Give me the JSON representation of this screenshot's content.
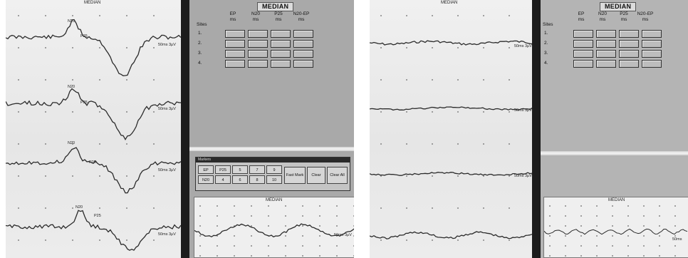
{
  "left_photo": {
    "trace_panel": {
      "top_label": "MEDIAN",
      "traces": [
        {
          "peak_n20": "N20",
          "peak_p25": "P25",
          "sweep": "50ms 3μV"
        },
        {
          "peak_n20": "N20",
          "peak_p25": "P25",
          "sweep": "50ms 3μV"
        },
        {
          "peak_n20": "N20",
          "peak_p25": "P25",
          "sweep": "50ms 3μV"
        },
        {
          "peak_n20": "N20",
          "peak_p25": "P25",
          "sweep": "50ms 3μV"
        }
      ]
    },
    "data_panel": {
      "title": "MEDIAN",
      "columns": [
        {
          "name": "EP",
          "unit": "ms"
        },
        {
          "name": "N20",
          "unit": "ms"
        },
        {
          "name": "P25",
          "unit": "ms"
        },
        {
          "name": "N20-EP",
          "unit": "ms"
        }
      ],
      "row_header": "Sites",
      "rows": [
        "1.",
        "2.",
        "3.",
        "4."
      ],
      "markers": {
        "title": "Markers",
        "buttons_row1": [
          "EP",
          "P25",
          "5",
          "7",
          "9"
        ],
        "buttons_row2": [
          "N20",
          "4",
          "6",
          "8",
          "10"
        ],
        "actions": [
          "Fast Mark",
          "Clear",
          "Clear All"
        ]
      },
      "lower_trace": {
        "top_label": "MEDIAN",
        "sweep": "50ms 3μV"
      }
    }
  },
  "right_photo": {
    "trace_panel": {
      "top_label": "MEDIAN",
      "traces": [
        {
          "sweep": "50ms 3μV"
        },
        {
          "sweep": "50ms 3μV"
        },
        {
          "sweep": "50ms 3μV"
        },
        {
          "sweep": ""
        }
      ]
    },
    "data_panel": {
      "title": "MEDIAN",
      "columns": [
        {
          "name": "EP",
          "unit": "ms"
        },
        {
          "name": "N20",
          "unit": "ms"
        },
        {
          "name": "P25",
          "unit": "ms"
        },
        {
          "name": "N20-EP",
          "unit": "ms"
        }
      ],
      "row_header": "Sites",
      "rows": [
        "1.",
        "2.",
        "3.",
        "4."
      ],
      "lower_trace": {
        "top_label": "MEDIAN",
        "sweep": "50ms"
      }
    }
  }
}
